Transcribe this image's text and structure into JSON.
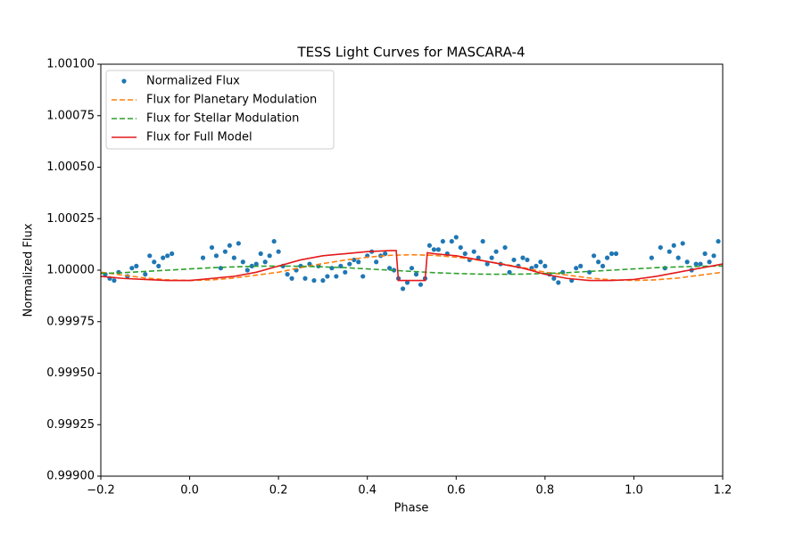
{
  "chart_data": {
    "type": "line",
    "title": "TESS Light Curves for MASCARA-4",
    "xlabel": "Phase",
    "ylabel": "Normalized Flux",
    "xlim": [
      -0.2,
      1.2
    ],
    "ylim": [
      0.999,
      1.001
    ],
    "xticks": [
      {
        "value": -0.2,
        "label": "−0.2"
      },
      {
        "value": 0,
        "label": "0.0"
      },
      0.2,
      0.4,
      0.6,
      0.8,
      {
        "value": 1,
        "label": "1.0"
      },
      1.2
    ],
    "yticks": [
      {
        "value": 0.999,
        "label": "0.99900"
      },
      {
        "value": 0.99925,
        "label": "0.99925"
      },
      {
        "value": 0.9995,
        "label": "0.99950"
      },
      {
        "value": 0.99975,
        "label": "0.99975"
      },
      {
        "value": 1,
        "label": "1.00000"
      },
      {
        "value": 1.00025,
        "label": "1.00025"
      },
      {
        "value": 1.0005,
        "label": "1.00050"
      },
      {
        "value": 1.00075,
        "label": "1.00075"
      },
      {
        "value": 1.001,
        "label": "1.00100"
      }
    ],
    "legend": "upper left",
    "series": [
      {
        "name": "Normalized Flux",
        "color": "#1f77b4",
        "style": "dots",
        "x": [
          -0.19,
          -0.18,
          -0.17,
          -0.16,
          -0.14,
          -0.13,
          -0.12,
          -0.1,
          -0.09,
          -0.08,
          -0.07,
          -0.06,
          -0.05,
          -0.04,
          0.03,
          0.05,
          0.06,
          0.07,
          0.08,
          0.09,
          0.1,
          0.11,
          0.12,
          0.13,
          0.14,
          0.15,
          0.16,
          0.17,
          0.18,
          0.19,
          0.2,
          0.21,
          0.22,
          0.23,
          0.24,
          0.25,
          0.26,
          0.27,
          0.28,
          0.29,
          0.3,
          0.31,
          0.32,
          0.33,
          0.34,
          0.35,
          0.36,
          0.37,
          0.38,
          0.39,
          0.4,
          0.41,
          0.42,
          0.43,
          0.44,
          0.45,
          0.46,
          0.47,
          0.48,
          0.49,
          0.5,
          0.51,
          0.52,
          0.53,
          0.54,
          0.55,
          0.56,
          0.57,
          0.58,
          0.59,
          0.6,
          0.61,
          0.62,
          0.63,
          0.64,
          0.65,
          0.66,
          0.67,
          0.68,
          0.69,
          0.7,
          0.71,
          0.72,
          0.73,
          0.74,
          0.75,
          0.76,
          0.77,
          0.78,
          0.79,
          0.8,
          0.81,
          0.82,
          0.83,
          0.84,
          0.86,
          0.87,
          0.88,
          0.9,
          0.91,
          0.92,
          0.93,
          0.94,
          0.95,
          0.96,
          1.04,
          1.06,
          1.07,
          1.08,
          1.09,
          1.1,
          1.11,
          1.12,
          1.13,
          1.14,
          1.15,
          1.16,
          1.17,
          1.18,
          1.19
        ],
        "values": [
          0.99998,
          0.99996,
          0.99995,
          0.99999,
          0.99997,
          1.00001,
          1.00002,
          0.99998,
          1.00007,
          1.00004,
          1.00002,
          1.00006,
          1.00007,
          1.00008,
          1.00006,
          1.00011,
          1.00007,
          1.00001,
          1.00009,
          1.00012,
          1.00006,
          1.00013,
          1.00004,
          1.0,
          1.00002,
          1.00003,
          1.00008,
          1.00004,
          1.00007,
          1.00014,
          1.00009,
          1.00002,
          0.99998,
          0.99996,
          1.0,
          1.00002,
          0.99996,
          1.00003,
          0.99995,
          1.00002,
          0.99995,
          0.99997,
          1.00001,
          0.99997,
          1.00002,
          0.99999,
          1.00003,
          1.00005,
          1.00004,
          0.99997,
          1.00007,
          1.00009,
          1.00004,
          1.00007,
          1.00008,
          1.00001,
          1.0,
          0.99996,
          0.99991,
          0.99994,
          1.00001,
          0.99998,
          0.99993,
          0.99996,
          1.00012,
          1.0001,
          1.0001,
          1.00014,
          1.00008,
          1.00014,
          1.00016,
          1.00011,
          1.00008,
          1.00005,
          1.00009,
          1.00006,
          1.00014,
          1.00003,
          1.00006,
          1.00009,
          1.00003,
          1.00011,
          0.99999,
          1.00005,
          1.00002,
          1.00006,
          1.00005,
          1.00001,
          1.00002,
          1.00004,
          1.00002,
          0.99998,
          0.99996,
          0.99994,
          0.99999,
          0.99995,
          1.00001,
          1.00002,
          0.99999,
          1.00007,
          1.00004,
          1.00002,
          1.00006,
          1.00008,
          1.00008,
          1.00006,
          1.00011,
          1.00001,
          1.00009,
          1.00012,
          1.00006,
          1.00013,
          1.00004,
          1.0,
          1.00003,
          1.00003,
          1.00008,
          1.00004,
          1.00007,
          1.00014
        ]
      },
      {
        "name": "Flux for Planetary Modulation",
        "color": "#ff7f0e",
        "style": "dashed",
        "x": [
          -0.2,
          -0.15,
          -0.1,
          -0.05,
          0,
          0.05,
          0.1,
          0.15,
          0.2,
          0.25,
          0.3,
          0.35,
          0.4,
          0.45,
          0.5,
          0.55,
          0.6,
          0.65,
          0.7,
          0.75,
          0.8,
          0.85,
          0.9,
          0.95,
          1,
          1.05,
          1.1,
          1.15,
          1.2
        ],
        "values": [
          0.99999,
          0.999976,
          0.999962,
          0.999953,
          0.99995,
          0.999953,
          0.999962,
          0.999976,
          0.99999,
          1.0000125,
          1.000032,
          1.000049,
          1.000063,
          1.000072,
          1.000075,
          1.000072,
          1.000063,
          1.000049,
          1.000032,
          1.0000125,
          0.99999,
          0.999976,
          0.999962,
          0.999953,
          0.99995,
          0.999953,
          0.999962,
          0.999976,
          0.99999
        ]
      },
      {
        "name": "Flux for Stellar Modulation",
        "color": "#2ca02c",
        "style": "dashed",
        "x": [
          -0.2,
          -0.15,
          -0.1,
          -0.05,
          0,
          0.05,
          0.1,
          0.15,
          0.2,
          0.25,
          0.3,
          0.35,
          0.4,
          0.45,
          0.5,
          0.55,
          0.6,
          0.65,
          0.7,
          0.75,
          0.8,
          0.85,
          0.9,
          0.95,
          1,
          1.05,
          1.1,
          1.15,
          1.2
        ],
        "values": [
          0.999984,
          0.999988,
          0.999994,
          1.0,
          1.000006,
          1.000012,
          1.000016,
          1.000019,
          1.00002,
          1.000019,
          1.000016,
          1.000012,
          1.000006,
          1.0,
          0.999994,
          0.999988,
          0.999984,
          0.999981,
          0.99998,
          0.999981,
          0.999984,
          0.999988,
          0.999994,
          1.0,
          1.000006,
          1.000012,
          1.000016,
          1.000019,
          1.00002
        ]
      },
      {
        "name": "Flux for Full Model",
        "color": "#e41a1c",
        "style": "solid",
        "x": [
          -0.2,
          -0.15,
          -0.1,
          -0.05,
          0,
          0.05,
          0.1,
          0.15,
          0.2,
          0.25,
          0.3,
          0.35,
          0.4,
          0.45,
          0.465,
          0.47,
          0.53,
          0.535,
          0.55,
          0.6,
          0.65,
          0.7,
          0.75,
          0.8,
          0.85,
          0.9,
          0.95,
          1,
          1.05,
          1.1,
          1.15,
          1.2
        ],
        "values": [
          0.99997,
          0.99996,
          0.999955,
          0.99995,
          0.99995,
          0.99996,
          0.99997,
          0.99999,
          1.00002,
          1.00005,
          1.00007,
          1.00008,
          1.00009,
          1.000095,
          1.000095,
          0.99995,
          0.99995,
          1.000085,
          1.00008,
          1.00007,
          1.00005,
          1.00003,
          1.00001,
          0.99998,
          0.99996,
          0.99995,
          0.99995,
          0.999955,
          0.99997,
          0.99999,
          1.00001,
          1.00003
        ]
      }
    ]
  }
}
